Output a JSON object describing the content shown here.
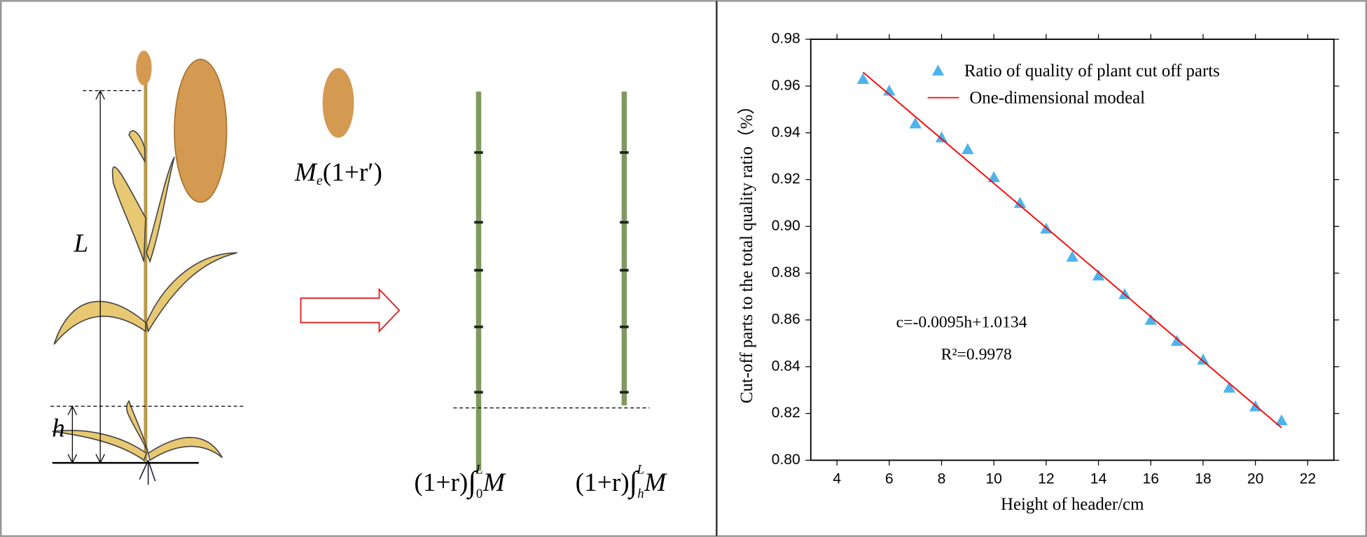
{
  "diagram": {
    "length_label": "L",
    "height_label": "h",
    "ear_formula": {
      "base": "M",
      "sub": "e",
      "rest": "(1+r′)"
    },
    "stalk_formula_left": {
      "prefix": "(1+r)",
      "integral": "∫",
      "lower": "0",
      "upper": "L",
      "integrand": "M"
    },
    "stalk_formula_right": {
      "prefix": "(1+r)",
      "integral": "∫",
      "lower": "h",
      "upper": "L",
      "integrand": "M"
    }
  },
  "chart_data": {
    "type": "scatter",
    "x_label": "Height of header/cm",
    "y_label": "Cut-off parts to the total quality ratio（%）",
    "annotations": [
      "c=-0.0095h+1.0134",
      "R²=0.9978"
    ],
    "xlim": [
      3,
      23
    ],
    "xticks": [
      4,
      6,
      8,
      10,
      12,
      14,
      16,
      18,
      20,
      22
    ],
    "ylim": [
      0.8,
      0.98
    ],
    "yticks": [
      {
        "value": 0.8,
        "label": "0.80"
      },
      0.82,
      0.84,
      0.86,
      0.88,
      {
        "value": 0.9,
        "label": "0.90"
      },
      0.92,
      0.94,
      0.96,
      0.98
    ],
    "grid": false,
    "legend": "top",
    "series": [
      {
        "name": "Ratio of quality of plant cut off parts",
        "type": "scatter",
        "marker": "triangle",
        "color": "#4db3ea",
        "x": [
          5,
          6,
          7,
          8,
          9,
          10,
          11,
          12,
          13,
          14,
          15,
          16,
          17,
          18,
          19,
          20,
          21
        ],
        "values": [
          0.963,
          0.958,
          0.944,
          0.938,
          0.933,
          0.921,
          0.91,
          0.899,
          0.887,
          0.879,
          0.871,
          0.86,
          0.851,
          0.843,
          0.831,
          0.823,
          0.817
        ]
      },
      {
        "name": "One-dimensional modeal",
        "type": "line",
        "color": "#ff0000",
        "x": [
          5,
          21
        ],
        "values": [
          0.9659,
          0.8139
        ]
      }
    ]
  }
}
